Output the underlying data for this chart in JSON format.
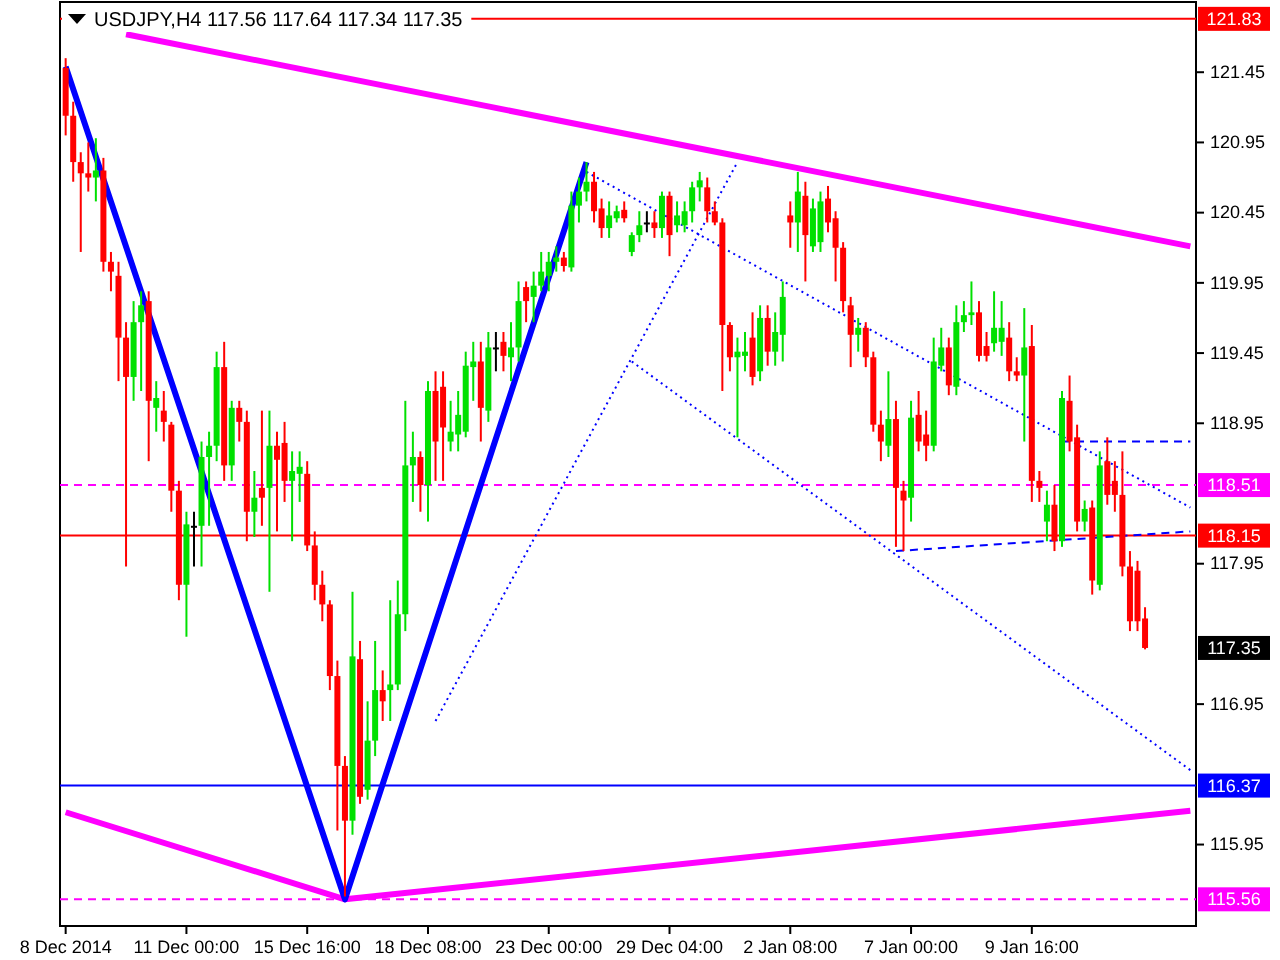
{
  "chart_data": {
    "type": "candlestick",
    "title": "USDJPY,H4  117.56 117.64 117.34 117.35",
    "categories": [
      "8 Dec 2014",
      null,
      null,
      null,
      null,
      null,
      null,
      null,
      null,
      null,
      null,
      null,
      null,
      null,
      null,
      null,
      "11 Dec 00:00",
      null,
      null,
      null,
      null,
      null,
      null,
      null,
      null,
      null,
      null,
      null,
      null,
      null,
      null,
      null,
      "15 Dec 16:00",
      null,
      null,
      null,
      null,
      null,
      null,
      null,
      null,
      null,
      null,
      null,
      null,
      null,
      null,
      null,
      "18 Dec 08:00",
      null,
      null,
      null,
      null,
      null,
      null,
      null,
      null,
      null,
      null,
      null,
      null,
      null,
      null,
      null,
      "23 Dec 00:00",
      null,
      null,
      null,
      null,
      null,
      null,
      null,
      null,
      null,
      null,
      null,
      null,
      null,
      null,
      null,
      "29 Dec 04:00",
      null,
      null,
      null,
      null,
      null,
      null,
      null,
      null,
      null,
      null,
      null,
      null,
      null,
      null,
      null,
      "2 Jan 08:00",
      null,
      null,
      null,
      null,
      null,
      null,
      null,
      null,
      null,
      null,
      null,
      null,
      null,
      null,
      null,
      "7 Jan 00:00",
      null,
      null,
      null,
      null,
      null,
      null,
      null,
      null,
      null,
      null,
      null,
      null,
      null,
      null,
      null,
      "9 Jan 16:00",
      null,
      null,
      null,
      null,
      null,
      null,
      null,
      null,
      null,
      null,
      null,
      null,
      null,
      null,
      null,
      null,
      null,
      null,
      null,
      null,
      null
    ],
    "ohlc": [
      [
        121.48,
        121.55,
        121.0,
        121.14
      ],
      [
        121.14,
        121.24,
        120.67,
        120.81
      ],
      [
        120.81,
        120.88,
        120.17,
        120.73
      ],
      [
        120.73,
        120.95,
        120.6,
        120.7
      ],
      [
        120.7,
        120.98,
        120.53,
        120.75
      ],
      [
        120.75,
        120.84,
        120.03,
        120.1
      ],
      [
        120.1,
        120.17,
        119.89,
        120.03
      ],
      [
        120.0,
        120.1,
        119.25,
        119.56
      ],
      [
        119.56,
        119.67,
        117.93,
        119.28
      ],
      [
        119.28,
        119.82,
        119.11,
        119.67
      ],
      [
        119.67,
        119.89,
        119.18,
        119.79
      ],
      [
        119.82,
        119.89,
        118.68,
        119.11
      ],
      [
        119.06,
        119.25,
        118.89,
        119.13
      ],
      [
        119.04,
        119.18,
        118.82,
        118.96
      ],
      [
        118.94,
        118.96,
        118.32,
        118.47
      ],
      [
        118.47,
        118.54,
        117.69,
        117.8
      ],
      [
        117.8,
        118.32,
        117.43,
        118.23
      ],
      [
        118.22,
        118.32,
        117.93,
        118.22
      ],
      [
        118.22,
        118.82,
        117.93,
        118.71
      ],
      [
        118.71,
        118.89,
        118.22,
        118.79
      ],
      [
        118.79,
        119.46,
        118.68,
        119.35
      ],
      [
        119.35,
        119.53,
        118.54,
        118.65
      ],
      [
        118.65,
        119.11,
        118.54,
        119.06
      ],
      [
        119.06,
        119.11,
        118.82,
        118.96
      ],
      [
        118.96,
        119.04,
        118.11,
        118.32
      ],
      [
        118.32,
        118.61,
        118.14,
        118.42
      ],
      [
        118.49,
        119.04,
        118.22,
        118.42
      ],
      [
        118.49,
        119.04,
        117.75,
        118.79
      ],
      [
        118.79,
        118.89,
        118.18,
        118.69
      ],
      [
        118.81,
        118.96,
        118.39,
        118.54
      ],
      [
        118.54,
        118.75,
        118.11,
        118.61
      ],
      [
        118.59,
        118.75,
        118.39,
        118.64
      ],
      [
        118.59,
        118.68,
        118.04,
        118.08
      ],
      [
        118.08,
        118.18,
        117.69,
        117.8
      ],
      [
        117.8,
        117.9,
        117.54,
        117.66
      ],
      [
        117.66,
        117.69,
        117.05,
        117.15
      ],
      [
        117.15,
        117.26,
        116.05,
        116.51
      ],
      [
        116.51,
        116.58,
        115.58,
        116.12
      ],
      [
        116.12,
        117.75,
        116.02,
        117.29
      ],
      [
        117.27,
        117.4,
        116.24,
        116.29
      ],
      [
        116.34,
        116.97,
        116.27,
        116.69
      ],
      [
        116.69,
        117.4,
        116.58,
        117.05
      ],
      [
        117.05,
        117.19,
        116.83,
        116.97
      ],
      [
        117.05,
        117.69,
        116.83,
        117.09
      ],
      [
        117.09,
        117.83,
        117.05,
        117.59
      ],
      [
        117.59,
        119.11,
        117.47,
        118.65
      ],
      [
        118.65,
        118.89,
        118.39,
        118.71
      ],
      [
        118.71,
        118.75,
        118.32,
        118.51
      ],
      [
        118.51,
        119.25,
        118.25,
        119.18
      ],
      [
        119.18,
        119.32,
        118.54,
        118.82
      ],
      [
        119.21,
        119.32,
        118.54,
        118.92
      ],
      [
        118.82,
        119.11,
        118.75,
        118.89
      ],
      [
        118.87,
        119.18,
        118.75,
        119.01
      ],
      [
        118.89,
        119.46,
        118.85,
        119.36
      ],
      [
        119.35,
        119.53,
        119.11,
        119.39
      ],
      [
        119.39,
        119.53,
        118.82,
        119.06
      ],
      [
        119.04,
        119.6,
        118.96,
        119.49
      ],
      [
        119.49,
        119.6,
        119.32,
        119.49
      ],
      [
        119.53,
        119.6,
        119.32,
        119.43
      ],
      [
        119.42,
        119.67,
        119.25,
        119.49
      ],
      [
        119.49,
        119.96,
        119.39,
        119.82
      ],
      [
        119.92,
        119.96,
        119.67,
        119.82
      ],
      [
        119.85,
        120.03,
        119.67,
        119.93
      ],
      [
        119.93,
        120.17,
        119.89,
        120.03
      ],
      [
        120.0,
        120.17,
        119.89,
        120.1
      ],
      [
        120.1,
        120.21,
        120.03,
        120.13
      ],
      [
        120.13,
        120.17,
        120.03,
        120.07
      ],
      [
        120.06,
        120.6,
        120.03,
        120.5
      ],
      [
        120.5,
        120.7,
        120.38,
        120.6
      ],
      [
        120.6,
        120.81,
        120.53,
        120.67
      ],
      [
        120.67,
        120.74,
        120.38,
        120.46
      ],
      [
        120.48,
        120.55,
        120.27,
        120.34
      ],
      [
        120.34,
        120.53,
        120.27,
        120.43
      ],
      [
        120.41,
        120.5,
        120.38,
        120.46
      ],
      [
        120.47,
        120.53,
        120.38,
        120.41
      ],
      [
        120.17,
        120.31,
        120.14,
        120.29
      ],
      [
        120.29,
        120.46,
        120.24,
        120.36
      ],
      [
        120.38,
        120.46,
        120.31,
        120.38
      ],
      [
        120.38,
        120.46,
        120.27,
        120.34
      ],
      [
        120.34,
        120.6,
        120.27,
        120.57
      ],
      [
        120.57,
        120.6,
        120.14,
        120.29
      ],
      [
        120.36,
        120.53,
        120.31,
        120.43
      ],
      [
        120.36,
        120.53,
        120.31,
        120.46
      ],
      [
        120.46,
        120.67,
        120.38,
        120.63
      ],
      [
        120.63,
        120.74,
        120.53,
        120.68
      ],
      [
        120.63,
        120.7,
        120.38,
        120.46
      ],
      [
        120.46,
        120.53,
        120.36,
        120.38
      ],
      [
        120.38,
        120.41,
        119.18,
        119.65
      ],
      [
        119.65,
        119.67,
        119.32,
        119.42
      ],
      [
        119.42,
        119.56,
        118.85,
        119.46
      ],
      [
        119.43,
        119.6,
        119.32,
        119.46
      ],
      [
        119.56,
        119.74,
        119.22,
        119.28
      ],
      [
        119.32,
        119.79,
        119.25,
        119.7
      ],
      [
        119.7,
        119.79,
        119.36,
        119.46
      ],
      [
        119.46,
        119.74,
        119.36,
        119.6
      ],
      [
        119.58,
        119.96,
        119.39,
        119.85
      ],
      [
        120.43,
        120.53,
        120.2,
        120.38
      ],
      [
        120.38,
        120.74,
        120.17,
        120.6
      ],
      [
        120.57,
        120.67,
        119.96,
        120.29
      ],
      [
        120.21,
        120.55,
        120.17,
        120.48
      ],
      [
        120.24,
        120.6,
        120.17,
        120.53
      ],
      [
        120.55,
        120.64,
        120.31,
        120.38
      ],
      [
        120.41,
        120.46,
        119.96,
        120.2
      ],
      [
        120.2,
        120.24,
        119.74,
        119.82
      ],
      [
        119.79,
        119.85,
        119.35,
        119.58
      ],
      [
        119.58,
        119.7,
        119.46,
        119.63
      ],
      [
        119.63,
        119.67,
        119.35,
        119.42
      ],
      [
        119.42,
        119.46,
        118.89,
        118.94
      ],
      [
        118.94,
        119.04,
        118.68,
        118.82
      ],
      [
        118.79,
        119.32,
        118.71,
        118.98
      ],
      [
        118.98,
        119.11,
        118.07,
        118.49
      ],
      [
        118.47,
        118.54,
        118.04,
        118.4
      ],
      [
        118.42,
        119.11,
        118.25,
        118.99
      ],
      [
        119.01,
        119.18,
        118.75,
        118.82
      ],
      [
        118.87,
        119.04,
        118.68,
        118.79
      ],
      [
        118.79,
        119.56,
        118.75,
        119.39
      ],
      [
        119.36,
        119.63,
        119.32,
        119.49
      ],
      [
        119.49,
        119.56,
        119.15,
        119.22
      ],
      [
        119.21,
        119.79,
        119.15,
        119.67
      ],
      [
        119.67,
        119.82,
        119.6,
        119.72
      ],
      [
        119.72,
        119.96,
        119.65,
        119.74
      ],
      [
        119.74,
        119.82,
        119.39,
        119.43
      ],
      [
        119.5,
        119.6,
        119.39,
        119.43
      ],
      [
        119.52,
        119.89,
        119.46,
        119.63
      ],
      [
        119.53,
        119.82,
        119.43,
        119.63
      ],
      [
        119.56,
        119.67,
        119.25,
        119.32
      ],
      [
        119.32,
        119.42,
        119.25,
        119.29
      ],
      [
        119.29,
        119.77,
        118.82,
        119.49
      ],
      [
        119.5,
        119.65,
        118.39,
        118.54
      ],
      [
        118.54,
        118.61,
        118.39,
        118.49
      ],
      [
        118.25,
        118.47,
        118.11,
        118.37
      ],
      [
        118.37,
        118.51,
        118.04,
        118.11
      ],
      [
        118.11,
        119.18,
        118.07,
        119.13
      ],
      [
        119.11,
        119.29,
        118.75,
        118.82
      ],
      [
        118.85,
        118.94,
        118.18,
        118.25
      ],
      [
        118.25,
        118.4,
        118.18,
        118.34
      ],
      [
        118.35,
        118.4,
        117.73,
        117.83
      ],
      [
        117.8,
        118.75,
        117.76,
        118.65
      ],
      [
        118.68,
        118.85,
        118.37,
        118.44
      ],
      [
        118.54,
        118.68,
        118.32,
        118.44
      ],
      [
        118.44,
        118.75,
        117.86,
        117.93
      ],
      [
        117.93,
        118.04,
        117.47,
        117.54
      ],
      [
        117.9,
        117.97,
        117.47,
        117.54
      ],
      [
        117.56,
        117.64,
        117.34,
        117.35
      ],
      null,
      null,
      null,
      null,
      null,
      null
    ],
    "colors": [
      "#ff0000",
      "#ff0000",
      "#ff0000",
      "#ff0000",
      "#00e000",
      "#ff0000",
      "#ff0000",
      "#ff0000",
      "#ff0000",
      "#00e000",
      "#00e000",
      "#ff0000",
      "#00e000",
      "#ff0000",
      "#ff0000",
      "#ff0000",
      "#00e000",
      "#000000",
      "#00e000",
      "#00e000",
      "#00e000",
      "#ff0000",
      "#00e000",
      "#ff0000",
      "#ff0000",
      "#00e000",
      "#ff0000",
      "#00e000",
      "#ff0000",
      "#ff0000",
      "#00e000",
      "#00e000",
      "#ff0000",
      "#ff0000",
      "#ff0000",
      "#ff0000",
      "#ff0000",
      "#ff0000",
      "#00e000",
      "#ff0000",
      "#00e000",
      "#00e000",
      "#ff0000",
      "#00e000",
      "#00e000",
      "#00e000",
      "#00e000",
      "#ff0000",
      "#00e000",
      "#ff0000",
      "#ff0000",
      "#00e000",
      "#00e000",
      "#00e000",
      "#00e000",
      "#ff0000",
      "#00e000",
      "#000000",
      "#ff0000",
      "#00e000",
      "#00e000",
      "#ff0000",
      "#00e000",
      "#00e000",
      "#00e000",
      "#00e000",
      "#ff0000",
      "#00e000",
      "#00e000",
      "#00e000",
      "#ff0000",
      "#ff0000",
      "#00e000",
      "#00e000",
      "#ff0000",
      "#00e000",
      "#00e000",
      "#000000",
      "#ff0000",
      "#00e000",
      "#ff0000",
      "#00e000",
      "#00e000",
      "#00e000",
      "#00e000",
      "#ff0000",
      "#ff0000",
      "#ff0000",
      "#ff0000",
      "#00e000",
      "#00e000",
      "#ff0000",
      "#00e000",
      "#ff0000",
      "#00e000",
      "#00e000",
      "#ff0000",
      "#00e000",
      "#ff0000",
      "#00e000",
      "#00e000",
      "#ff0000",
      "#ff0000",
      "#ff0000",
      "#ff0000",
      "#00e000",
      "#ff0000",
      "#ff0000",
      "#ff0000",
      "#00e000",
      "#ff0000",
      "#ff0000",
      "#00e000",
      "#ff0000",
      "#ff0000",
      "#00e000",
      "#00e000",
      "#ff0000",
      "#00e000",
      "#00e000",
      "#00e000",
      "#ff0000",
      "#ff0000",
      "#00e000",
      "#00e000",
      "#ff0000",
      "#ff0000",
      "#00e000",
      "#ff0000",
      "#ff0000",
      "#00e000",
      "#ff0000",
      "#00e000",
      "#ff0000",
      "#ff0000",
      "#00e000",
      "#ff0000",
      "#00e000",
      "#ff0000",
      "#ff0000",
      "#ff0000",
      "#ff0000",
      "#ff0000",
      "#ff0000",
      null,
      null,
      null,
      null,
      null,
      null
    ],
    "series": [
      {
        "type": "line",
        "color": "#ff00ff",
        "line_style": "solid",
        "values": [
          null,
          null,
          null,
          null,
          null,
          null,
          null,
          null,
          121.72,
          null,
          null,
          null,
          null,
          null,
          null,
          null,
          null,
          null,
          null,
          null,
          null,
          null,
          null,
          null,
          null,
          null,
          null,
          null,
          null,
          null,
          null,
          null,
          null,
          null,
          null,
          null,
          null,
          null,
          null,
          null,
          null,
          null,
          null,
          null,
          null,
          null,
          null,
          null,
          null,
          null,
          null,
          null,
          null,
          null,
          null,
          null,
          null,
          null,
          null,
          null,
          null,
          null,
          null,
          null,
          null,
          null,
          null,
          null,
          null,
          null,
          null,
          null,
          null,
          null,
          null,
          null,
          null,
          null,
          null,
          null,
          null,
          null,
          null,
          null,
          null,
          null,
          null,
          null,
          null,
          null,
          null,
          null,
          null,
          null,
          null,
          null,
          null,
          null,
          null,
          null,
          null,
          null,
          null,
          null,
          null,
          null,
          null,
          null,
          null,
          null,
          null,
          null,
          null,
          null,
          null,
          null,
          null,
          null,
          null,
          null,
          null,
          null,
          null,
          null,
          null,
          null,
          null,
          null,
          null,
          null,
          null,
          null,
          null,
          null,
          null,
          null,
          null,
          null,
          null,
          null,
          null,
          null,
          null,
          null,
          null,
          null,
          null,
          null,
          null,
          120.21
        ]
      },
      {
        "type": "line",
        "color": "#ff00ff",
        "line_style": "solid",
        "values": [
          116.18,
          null,
          null,
          null,
          null,
          null,
          null,
          null,
          null,
          null,
          null,
          null,
          null,
          null,
          null,
          null,
          null,
          null,
          null,
          null,
          null,
          null,
          null,
          null,
          null,
          null,
          null,
          null,
          null,
          null,
          null,
          null,
          null,
          null,
          null,
          null,
          null,
          115.56,
          null,
          null,
          null,
          null,
          null,
          null,
          null,
          null,
          null,
          null,
          null,
          null,
          null,
          null,
          null,
          null,
          null,
          null,
          null,
          null,
          null,
          null,
          null,
          null,
          null,
          null,
          null,
          null,
          null,
          null,
          null,
          null,
          null,
          null,
          null,
          null,
          null,
          null,
          null,
          null,
          null,
          null,
          null,
          null,
          null,
          null,
          null,
          null,
          null,
          null,
          null,
          null,
          null,
          null,
          null,
          null,
          null,
          null,
          null,
          null,
          null,
          null,
          null,
          null,
          null,
          null,
          null,
          null,
          null,
          null,
          null,
          null,
          null,
          null,
          null,
          null,
          null,
          null,
          null,
          null,
          null,
          null,
          null,
          null,
          null,
          null,
          null,
          null,
          null,
          null,
          null,
          null,
          null,
          null,
          null,
          null,
          null,
          null,
          null,
          null,
          null,
          null,
          null,
          null,
          null,
          null,
          null,
          null,
          null,
          null,
          null,
          116.19
        ]
      },
      {
        "type": "line",
        "color": "#0000ff",
        "line_style": "solid",
        "values": [
          121.49,
          null,
          null,
          null,
          null,
          null,
          null,
          null,
          null,
          null,
          null,
          null,
          null,
          null,
          null,
          null,
          null,
          null,
          null,
          null,
          null,
          null,
          null,
          null,
          null,
          null,
          null,
          null,
          null,
          null,
          null,
          null,
          null,
          null,
          null,
          null,
          null,
          115.56,
          null,
          null,
          null,
          null,
          null,
          null,
          null,
          null,
          null,
          null,
          null,
          null,
          null,
          null,
          null,
          null,
          null,
          null,
          null,
          null,
          null,
          null,
          null,
          null,
          null,
          null,
          null,
          null,
          null,
          null,
          null,
          120.81,
          null,
          null,
          null,
          null,
          null,
          null,
          null,
          null,
          null,
          null,
          null,
          null,
          null,
          null,
          null,
          null,
          null,
          null,
          null,
          null,
          null,
          null,
          null,
          null,
          null,
          null,
          null,
          null,
          null,
          null,
          null,
          null,
          null,
          null,
          null,
          null,
          null,
          null,
          null,
          null,
          null,
          null,
          null,
          null,
          null,
          null,
          null,
          null,
          null,
          null,
          null,
          null,
          null,
          null,
          null,
          null,
          null,
          null,
          null,
          null,
          null,
          null,
          null,
          null,
          null,
          null,
          null,
          null,
          null,
          null,
          null,
          null,
          null,
          null,
          null,
          null,
          null,
          null,
          null,
          null
        ]
      },
      {
        "type": "line",
        "color": "#0000ff",
        "line_style": "dotted",
        "values": [
          null,
          null,
          null,
          null,
          null,
          null,
          null,
          null,
          null,
          null,
          null,
          null,
          null,
          null,
          null,
          null,
          null,
          null,
          null,
          null,
          null,
          null,
          null,
          null,
          null,
          null,
          null,
          null,
          null,
          null,
          null,
          null,
          null,
          null,
          null,
          null,
          null,
          null,
          null,
          null,
          null,
          null,
          null,
          null,
          null,
          null,
          null,
          null,
          null,
          null,
          null,
          null,
          null,
          null,
          null,
          null,
          null,
          null,
          null,
          null,
          null,
          null,
          null,
          null,
          null,
          null,
          null,
          null,
          null,
          120.74,
          null,
          null,
          null,
          null,
          null,
          null,
          null,
          null,
          null,
          null,
          null,
          null,
          null,
          null,
          null,
          null,
          null,
          null,
          null,
          null,
          null,
          null,
          null,
          null,
          null,
          null,
          null,
          null,
          null,
          null,
          null,
          null,
          null,
          null,
          null,
          null,
          null,
          null,
          null,
          null,
          null,
          null,
          null,
          null,
          null,
          null,
          null,
          null,
          null,
          null,
          null,
          null,
          null,
          null,
          null,
          null,
          null,
          null,
          null,
          null,
          null,
          null,
          null,
          null,
          null,
          null,
          null,
          null,
          null,
          null,
          null,
          null,
          null,
          null,
          null,
          null,
          null,
          null,
          null,
          118.35
        ]
      },
      {
        "type": "line",
        "color": "#0000ff",
        "line_style": "dotted",
        "values": [
          null,
          null,
          null,
          null,
          null,
          null,
          null,
          null,
          null,
          null,
          null,
          null,
          null,
          null,
          null,
          null,
          null,
          null,
          null,
          null,
          null,
          null,
          null,
          null,
          null,
          null,
          null,
          null,
          null,
          null,
          null,
          null,
          null,
          null,
          null,
          null,
          null,
          null,
          null,
          null,
          null,
          null,
          null,
          null,
          null,
          null,
          null,
          null,
          null,
          116.83,
          null,
          null,
          null,
          null,
          null,
          null,
          null,
          null,
          null,
          null,
          null,
          null,
          null,
          null,
          null,
          null,
          null,
          null,
          null,
          null,
          null,
          null,
          null,
          null,
          null,
          null,
          null,
          null,
          null,
          null,
          null,
          null,
          null,
          null,
          null,
          null,
          null,
          null,
          null,
          120.81,
          null,
          null,
          null,
          null,
          null,
          null,
          null,
          null,
          null,
          null,
          null,
          null,
          null,
          null,
          null,
          null,
          null,
          null,
          null,
          null,
          null,
          null,
          null,
          null,
          null,
          null,
          null,
          null,
          null,
          null,
          null,
          null,
          null,
          null,
          null,
          null,
          null,
          null,
          null,
          null,
          null,
          null,
          null,
          null,
          null,
          null,
          null,
          null,
          null,
          null,
          null,
          null,
          null,
          null,
          null,
          null,
          null,
          null,
          null,
          null
        ]
      },
      {
        "type": "line",
        "color": "#0000ff",
        "line_style": "dotted",
        "values": [
          null,
          null,
          null,
          null,
          null,
          null,
          null,
          null,
          null,
          null,
          null,
          null,
          null,
          null,
          null,
          null,
          null,
          null,
          null,
          null,
          null,
          null,
          null,
          null,
          null,
          null,
          null,
          null,
          null,
          null,
          null,
          null,
          null,
          null,
          null,
          null,
          null,
          null,
          null,
          null,
          null,
          null,
          null,
          null,
          null,
          null,
          null,
          null,
          null,
          null,
          null,
          null,
          null,
          null,
          null,
          null,
          null,
          null,
          null,
          null,
          null,
          null,
          null,
          null,
          null,
          null,
          null,
          null,
          null,
          null,
          null,
          null,
          null,
          null,
          null,
          119.39,
          null,
          null,
          null,
          null,
          null,
          null,
          null,
          null,
          null,
          null,
          null,
          null,
          null,
          null,
          null,
          null,
          null,
          null,
          null,
          null,
          null,
          null,
          null,
          null,
          null,
          null,
          null,
          null,
          null,
          null,
          null,
          null,
          null,
          null,
          null,
          null,
          null,
          null,
          null,
          null,
          null,
          null,
          null,
          null,
          null,
          null,
          null,
          null,
          null,
          null,
          null,
          null,
          null,
          null,
          null,
          null,
          null,
          null,
          null,
          null,
          null,
          null,
          null,
          null,
          null,
          null,
          null,
          null,
          null,
          null,
          null,
          null,
          null,
          116.48
        ]
      },
      {
        "type": "line",
        "color": "#0000ff",
        "line_style": "dashed",
        "values": [
          null,
          null,
          null,
          null,
          null,
          null,
          null,
          null,
          null,
          null,
          null,
          null,
          null,
          null,
          null,
          null,
          null,
          null,
          null,
          null,
          null,
          null,
          null,
          null,
          null,
          null,
          null,
          null,
          null,
          null,
          null,
          null,
          null,
          null,
          null,
          null,
          null,
          null,
          null,
          null,
          null,
          null,
          null,
          null,
          null,
          null,
          null,
          null,
          null,
          null,
          null,
          null,
          null,
          null,
          null,
          null,
          null,
          null,
          null,
          null,
          null,
          null,
          null,
          null,
          null,
          null,
          null,
          null,
          null,
          null,
          null,
          null,
          null,
          null,
          null,
          null,
          null,
          null,
          null,
          null,
          null,
          null,
          null,
          null,
          null,
          null,
          null,
          null,
          null,
          null,
          null,
          null,
          null,
          null,
          null,
          null,
          null,
          null,
          null,
          null,
          null,
          null,
          null,
          null,
          null,
          null,
          null,
          null,
          null,
          null,
          null,
          null,
          null,
          null,
          null,
          null,
          null,
          null,
          null,
          null,
          null,
          null,
          null,
          null,
          null,
          null,
          null,
          null,
          null,
          null,
          null,
          null,
          118.82,
          null,
          null,
          null,
          null,
          null,
          null,
          null,
          null,
          null,
          null,
          null,
          null,
          null,
          null,
          null,
          null,
          118.82
        ]
      },
      {
        "type": "line",
        "color": "#0000ff",
        "line_style": "dashed",
        "values": [
          null,
          null,
          null,
          null,
          null,
          null,
          null,
          null,
          null,
          null,
          null,
          null,
          null,
          null,
          null,
          null,
          null,
          null,
          null,
          null,
          null,
          null,
          null,
          null,
          null,
          null,
          null,
          null,
          null,
          null,
          null,
          null,
          null,
          null,
          null,
          null,
          null,
          null,
          null,
          null,
          null,
          null,
          null,
          null,
          null,
          null,
          null,
          null,
          null,
          null,
          null,
          null,
          null,
          null,
          null,
          null,
          null,
          null,
          null,
          null,
          null,
          null,
          null,
          null,
          null,
          null,
          null,
          null,
          null,
          null,
          null,
          null,
          null,
          null,
          null,
          null,
          null,
          null,
          null,
          null,
          null,
          null,
          null,
          null,
          null,
          null,
          null,
          null,
          null,
          null,
          null,
          null,
          null,
          null,
          null,
          null,
          null,
          null,
          null,
          null,
          null,
          null,
          null,
          null,
          null,
          null,
          null,
          null,
          null,
          null,
          118.04,
          null,
          null,
          null,
          null,
          null,
          null,
          null,
          null,
          null,
          null,
          null,
          null,
          null,
          null,
          null,
          null,
          null,
          null,
          null,
          null,
          null,
          null,
          null,
          null,
          null,
          null,
          null,
          null,
          null,
          null,
          null,
          null,
          null,
          null,
          null,
          null,
          null,
          null,
          118.18
        ]
      }
    ],
    "ref_lines": [
      {
        "axis": "y",
        "value": 121.83,
        "label": "121.83",
        "color": "#ff0000",
        "line_style": "solid"
      },
      {
        "axis": "y",
        "value": 118.51,
        "label": "118.51",
        "color": "#ff00ff",
        "line_style": "dashed"
      },
      {
        "axis": "y",
        "value": 118.15,
        "label": "118.15",
        "color": "#ff0000",
        "line_style": "solid"
      },
      {
        "axis": "y",
        "value": 116.37,
        "label": "116.37",
        "color": "#0000ff",
        "line_style": "solid"
      },
      {
        "axis": "y",
        "value": 115.56,
        "label": "115.56",
        "color": "#ff00ff",
        "line_style": "dashed"
      }
    ],
    "annotations": [
      {
        "text": "117.35",
        "y": 117.35
      }
    ],
    "ylim": [
      115.37,
      121.95
    ],
    "yticks": [
      121.45,
      120.95,
      120.45,
      119.95,
      119.45,
      118.95,
      117.95,
      116.95,
      115.95
    ],
    "grid": false
  }
}
